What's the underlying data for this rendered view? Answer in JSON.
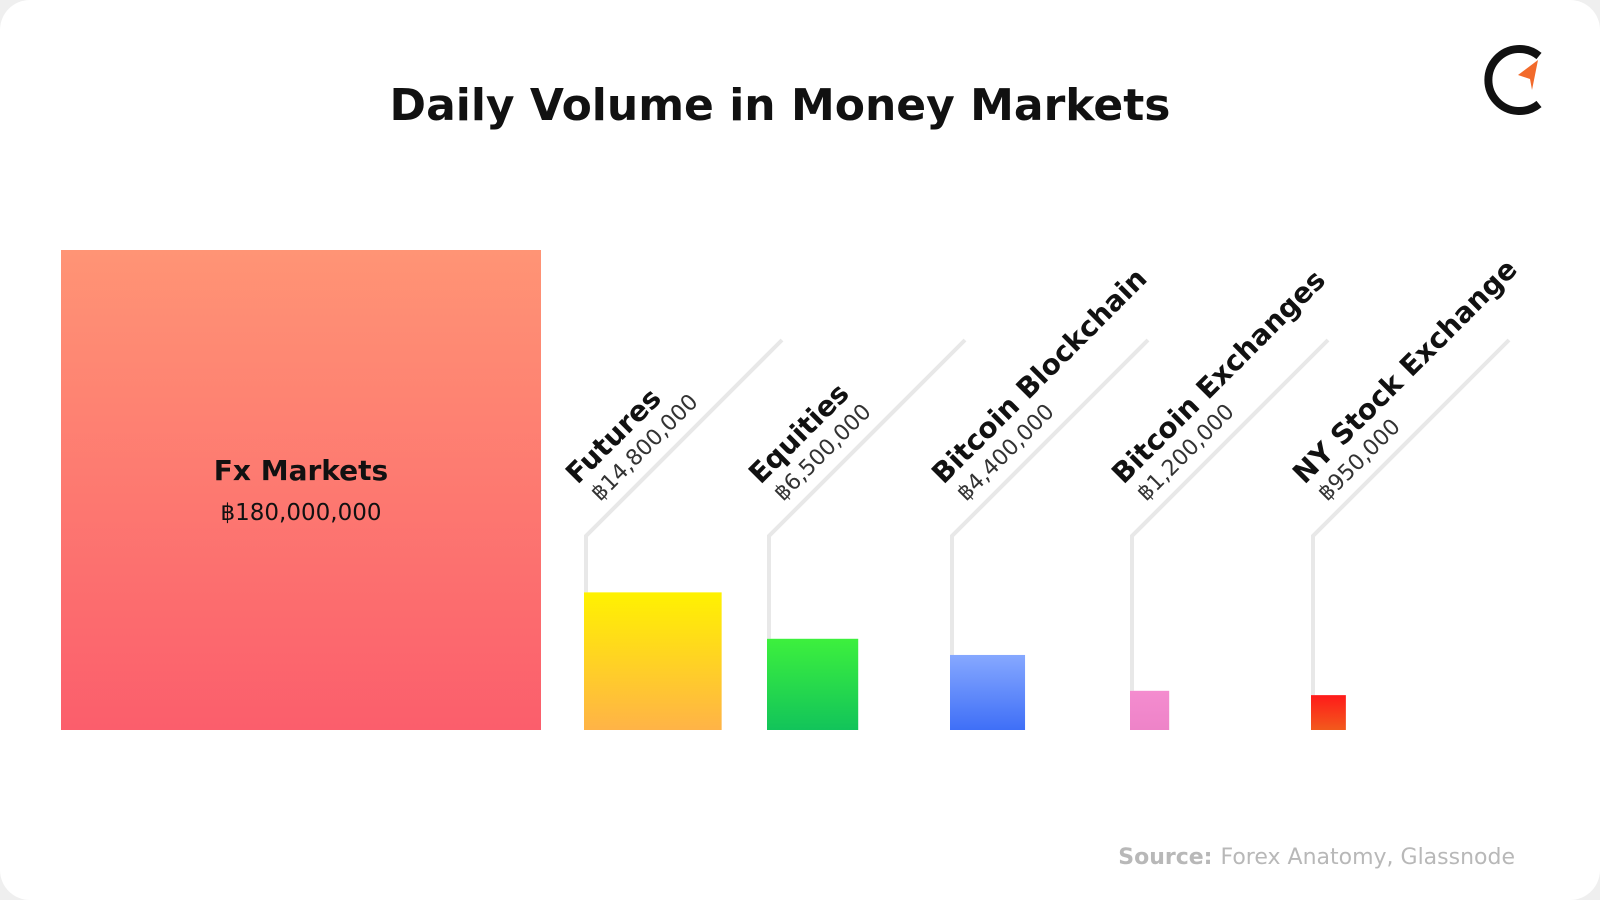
{
  "chart_data": {
    "type": "square-area",
    "title": "Daily Volume in Money Markets",
    "categories": [
      "Fx Markets",
      "Futures",
      "Equities",
      "Bitcoin Blockchain",
      "Bitcoin Exchanges",
      "NY Stock Exchange"
    ],
    "values": [
      180000000,
      14800000,
      6500000,
      4400000,
      1200000,
      950000
    ],
    "value_labels": [
      "฿180,000,000",
      "฿14,800,000",
      "฿6,500,000",
      "฿4,400,000",
      "฿1,200,000",
      "฿950,000"
    ],
    "colors": [
      [
        "#ff9475",
        "#fb5e6c"
      ],
      [
        "#fff200",
        "#ffb347"
      ],
      [
        "#3df03d",
        "#12c45a"
      ],
      [
        "#86a8ff",
        "#3f6ff7"
      ],
      [
        "#f48ccf",
        "#ee83c8"
      ],
      [
        "#ff1a1a",
        "#f25a1c"
      ]
    ],
    "source_label": "Source:",
    "source": "Forex Anatomy, Glassnode"
  }
}
